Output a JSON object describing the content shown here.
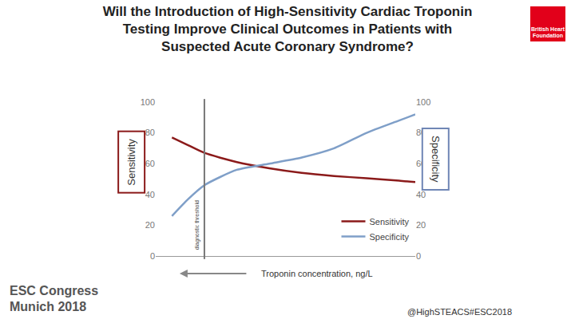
{
  "chart_data": {
    "type": "line",
    "title": "Will the Introduction of High-Sensitivity Cardiac Troponin Testing Improve Clinical Outcomes in Patients with Suspected Acute Coronary Syndrome?",
    "x": [
      1,
      1.5,
      2,
      3,
      4,
      5,
      6,
      7,
      8,
      8.5
    ],
    "xlim": [
      0.5,
      8.5
    ],
    "ylim": [
      0,
      100
    ],
    "yticks": [
      0,
      20,
      40,
      60,
      80,
      100
    ],
    "y2lim": [
      0,
      100
    ],
    "y2ticks": [
      0,
      20,
      40,
      60,
      80,
      100
    ],
    "xlabel": "Troponin concentration, ng/L",
    "ylabel": "Sensitivity",
    "y2label": "Specificity",
    "tick_labels": "y",
    "grid": false,
    "legend": "lower right",
    "series": [
      {
        "name": "Sensitivity",
        "color": "#8b1a1a",
        "values": [
          77,
          72,
          67,
          61,
          57,
          54,
          52,
          50.5,
          49,
          48
        ]
      },
      {
        "name": "Specificity",
        "color": "#7f9fc8",
        "axis": "y2",
        "values": [
          26,
          37,
          46,
          56,
          60,
          64,
          70,
          80,
          88,
          92
        ]
      }
    ],
    "threshold": {
      "x": 2,
      "label": "diagnostic threshold"
    }
  },
  "slide": {
    "footer": [
      "ESC Congress",
      "Munich 2018"
    ],
    "handle": "@HighSTEACS#ESC2018",
    "logo": "British Heart Foundation"
  }
}
